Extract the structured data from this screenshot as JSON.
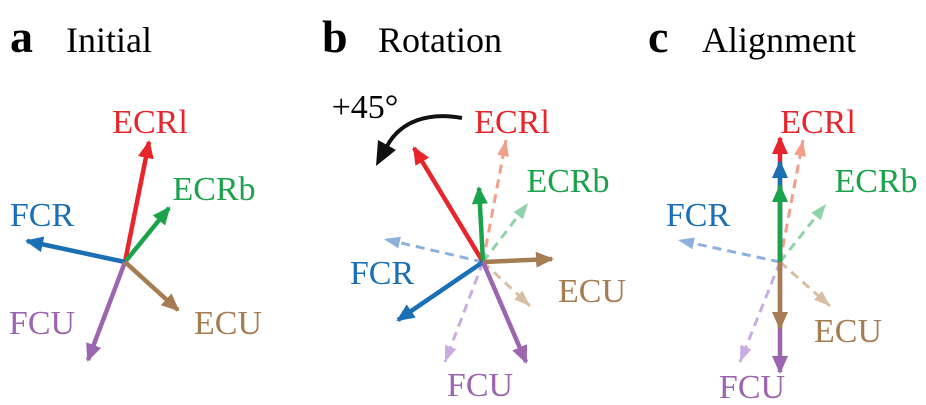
{
  "panels": [
    {
      "letter": "a",
      "title": "Initial",
      "labels": {
        "ecrl": "ECRl",
        "ecrb": "ECRb",
        "fcr": "FCR",
        "fcu": "FCU",
        "ecu": "ECU"
      }
    },
    {
      "letter": "b",
      "title": "Rotation",
      "annotation": "+45°",
      "labels": {
        "ecrl": "ECRl",
        "ecrb": "ECRb",
        "fcr": "FCR",
        "fcu": "FCU",
        "ecu": "ECU"
      }
    },
    {
      "letter": "c",
      "title": "Alignment",
      "labels": {
        "ecrl": "ECRl",
        "ecrb": "ECRb",
        "fcr": "FCR",
        "fcu": "FCU",
        "ecu": "ECU"
      }
    }
  ]
}
